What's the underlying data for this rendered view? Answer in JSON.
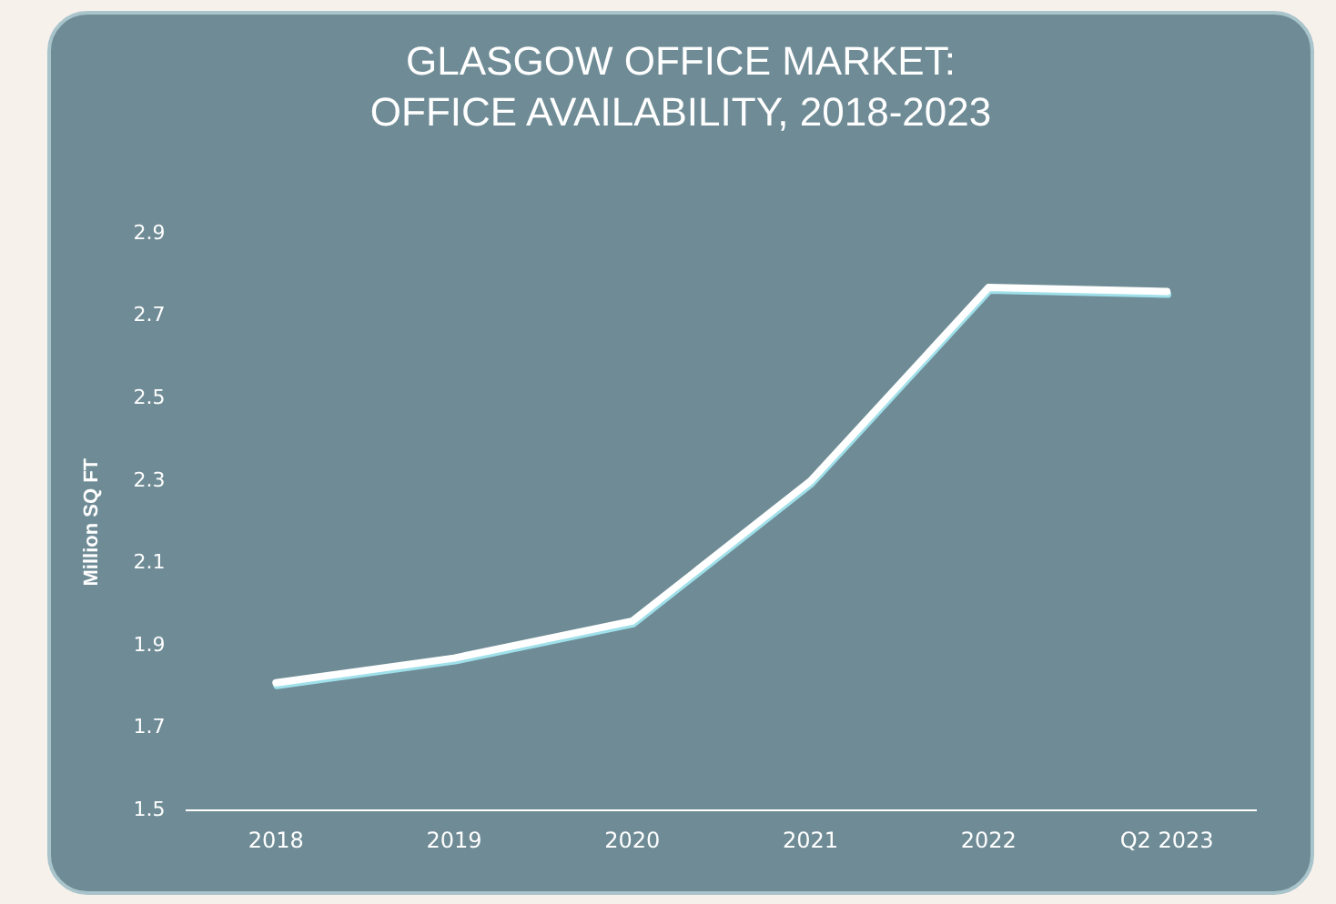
{
  "chart_data": {
    "type": "line",
    "title": "GLASGOW OFFICE MARKET:\nOFFICE AVAILABILITY, 2018-2023",
    "ylabel": "Million SQ FT",
    "categories": [
      "2018",
      "2019",
      "2020",
      "2021",
      "2022",
      "Q2 2023"
    ],
    "series": [
      {
        "color": "#ffffff",
        "values": [
          1.81,
          1.87,
          1.96,
          2.3,
          2.77,
          2.76
        ]
      }
    ],
    "ylim": [
      1.5,
      2.9
    ],
    "yticks": [
      1.5,
      1.7,
      1.9,
      2.1,
      2.3,
      2.5,
      2.7,
      2.9
    ],
    "grid": false,
    "legend": false,
    "marker": "none",
    "line_style": "solid"
  }
}
